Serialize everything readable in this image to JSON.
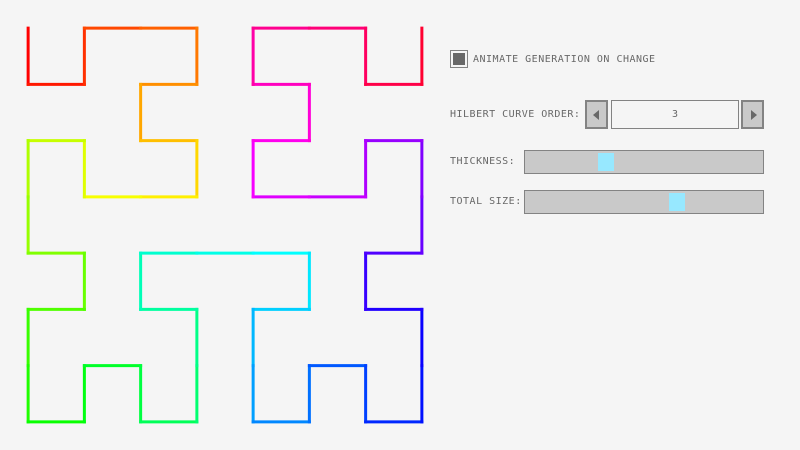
{
  "curve": {
    "order": 3,
    "hue_start": 0,
    "hue_end": 360
  },
  "controls": {
    "animate_label": "ANIMATE GENERATION ON CHANGE",
    "animate_checked": true,
    "order_label": "HILBERT CURVE ORDER:",
    "order_value": "3",
    "thickness_label": "THICKNESS:",
    "thickness_fraction": 0.34,
    "size_label": "TOTAL SIZE:",
    "size_fraction": 0.64
  },
  "colors": {
    "handle": "#97e8ff",
    "track": "#c9c9c9",
    "border": "#838383",
    "text": "#686868",
    "background": "#f5f5f5"
  }
}
